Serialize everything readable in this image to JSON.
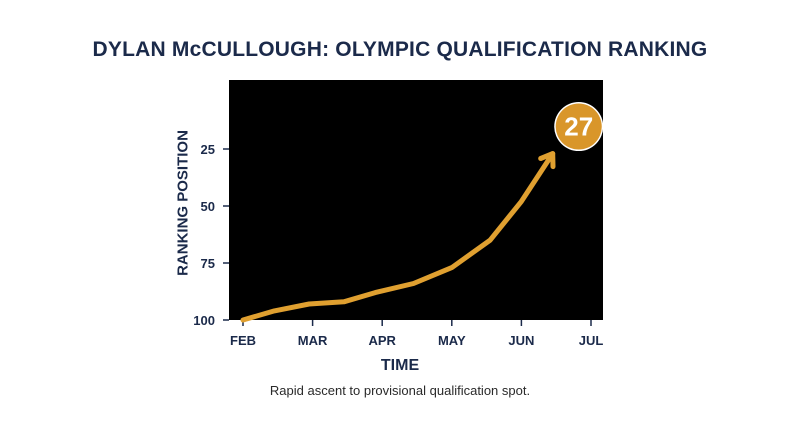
{
  "chart_data": {
    "type": "line",
    "title": "DYLAN McCULLOUGH: OLYMPIC QUALIFICATION RANKING",
    "xlabel": "TIME",
    "ylabel": "RANKING POSITION",
    "x_ticks": [
      "FEB",
      "MAR",
      "APR",
      "MAY",
      "JUN",
      "JUL"
    ],
    "y_ticks": [
      25,
      50,
      75,
      100
    ],
    "ylim": [
      100,
      0
    ],
    "y_inverted": true,
    "grid": false,
    "series": [
      {
        "x": [
          0,
          0.45,
          0.95,
          1.45,
          1.9,
          2.45,
          3.0,
          3.55,
          4.0,
          4.45
        ],
        "y": [
          100,
          96,
          93,
          92,
          88,
          84,
          77,
          65,
          48,
          27
        ]
      }
    ],
    "end_marker_label": "27",
    "colors": {
      "background": "#000000",
      "line": "#e0a030",
      "text": "#1b2a4a",
      "badge": "#d9962a",
      "badge_text": "#ffffff"
    }
  },
  "caption": "Rapid ascent to provisional qualification spot."
}
